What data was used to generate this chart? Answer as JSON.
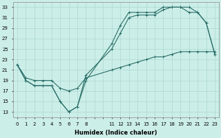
{
  "xlabel": "Humidex (Indice chaleur)",
  "bg_color": "#cceee8",
  "grid_color": "#aad8d0",
  "line_color": "#2a6e68",
  "xlim": [
    -0.5,
    23.5
  ],
  "ylim": [
    12,
    34
  ],
  "yticks": [
    13,
    15,
    17,
    19,
    21,
    23,
    25,
    27,
    29,
    31,
    33
  ],
  "xtick_labels": [
    "0",
    "1",
    "2",
    "3",
    "4",
    "5",
    "6",
    "7",
    "8",
    "",
    "",
    "11",
    "12",
    "13",
    "14",
    "15",
    "16",
    "17",
    "18",
    "19",
    "20",
    "21",
    "22",
    "23"
  ],
  "xtick_pos": [
    0,
    1,
    2,
    3,
    4,
    5,
    6,
    7,
    8,
    9,
    10,
    11,
    12,
    13,
    14,
    15,
    16,
    17,
    18,
    19,
    20,
    21,
    22,
    23
  ],
  "c1x": [
    0,
    1,
    2,
    3,
    4,
    5,
    6,
    7,
    8,
    11,
    12,
    13,
    14,
    15,
    16,
    17,
    18,
    19,
    20,
    21,
    22,
    23
  ],
  "c1y": [
    22,
    19,
    18,
    18,
    18,
    15,
    13,
    14,
    19,
    26,
    29.5,
    32,
    32,
    32,
    32,
    33,
    33,
    33,
    33,
    32,
    30,
    24
  ],
  "c2x": [
    0,
    1,
    2,
    3,
    4,
    5,
    6,
    7,
    8,
    11,
    12,
    13,
    14,
    15,
    16,
    17,
    18,
    19,
    20,
    21,
    22,
    23
  ],
  "c2y": [
    22,
    19,
    18,
    18,
    18,
    15,
    13,
    14,
    20,
    25,
    28,
    31,
    31.5,
    31.5,
    31.5,
    32.5,
    33,
    33,
    32,
    32,
    30,
    24
  ],
  "c3x": [
    0,
    1,
    2,
    3,
    4,
    5,
    6,
    7,
    8,
    11,
    12,
    13,
    14,
    15,
    16,
    17,
    18,
    19,
    20,
    21,
    22,
    23
  ],
  "c3y": [
    22,
    19.5,
    19,
    19,
    19,
    17.5,
    17,
    17.5,
    19.5,
    21,
    21.5,
    22,
    22.5,
    23,
    23.5,
    23.5,
    24,
    24.5,
    24.5,
    24.5,
    24.5,
    24.5
  ]
}
